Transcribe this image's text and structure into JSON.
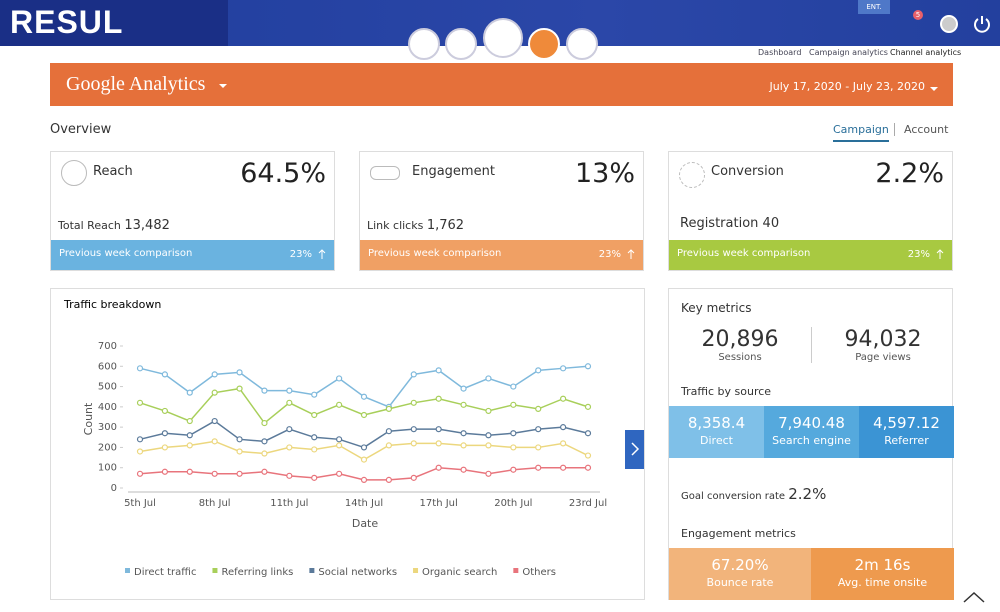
{
  "header": {
    "logo": "RESUL",
    "badge": "ENT.",
    "notifications": "5"
  },
  "breadcrumb": [
    "Dashboard",
    "Campaign analytics",
    "Channel analytics"
  ],
  "banner": {
    "brand": "Google Analytics",
    "date_range": "July 17, 2020 - July 23, 2020"
  },
  "overview": {
    "title": "Overview",
    "tabs": [
      "Campaign",
      "Account"
    ]
  },
  "cards": [
    {
      "title": "Reach",
      "value": "64.5%",
      "metric_label": "Total Reach",
      "metric_value": "13,482",
      "comparison": "Previous week comparison",
      "change": "23%"
    },
    {
      "title": "Engagement",
      "value": "13%",
      "metric_label": "Link clicks",
      "metric_value": "1,762",
      "comparison": "Previous week comparison",
      "change": "23%"
    },
    {
      "title": "Conversion",
      "value": "2.2%",
      "metric_label": "Registration",
      "metric_value": "40",
      "comparison": "Previous week comparison",
      "change": "23%"
    }
  ],
  "chart_data": {
    "type": "line",
    "title": "Traffic breakdown",
    "x_label": "Date",
    "y_label": "Count",
    "categories": [
      "5th Jul",
      null,
      null,
      "8th Jul",
      null,
      null,
      "11th Jul",
      null,
      null,
      "14th Jul",
      null,
      null,
      "17th Jul",
      null,
      null,
      "20th Jul",
      null,
      null,
      "23rd Jul"
    ],
    "ylim": [
      0,
      700
    ],
    "yticks": [
      0,
      100,
      200,
      300,
      400,
      500,
      600,
      700
    ],
    "series": [
      {
        "name": "Direct traffic",
        "color": "#7fb9dc",
        "values": [
          590,
          560,
          470,
          560,
          570,
          480,
          480,
          460,
          540,
          450,
          400,
          560,
          580,
          490,
          540,
          500,
          580,
          590,
          600
        ]
      },
      {
        "name": "Referring links",
        "color": "#a8cf5a",
        "values": [
          420,
          380,
          330,
          470,
          490,
          320,
          420,
          360,
          410,
          360,
          390,
          420,
          440,
          410,
          380,
          410,
          390,
          440,
          400
        ]
      },
      {
        "name": "Social networks",
        "color": "#5b7a9a",
        "values": [
          240,
          270,
          260,
          330,
          240,
          230,
          290,
          250,
          240,
          200,
          280,
          290,
          290,
          270,
          260,
          270,
          290,
          300,
          270
        ]
      },
      {
        "name": "Organic search",
        "color": "#ecd77e",
        "values": [
          180,
          200,
          210,
          230,
          180,
          170,
          200,
          190,
          210,
          140,
          210,
          220,
          220,
          210,
          210,
          200,
          200,
          220,
          160
        ]
      },
      {
        "name": "Others",
        "color": "#e8747c",
        "values": [
          70,
          80,
          80,
          70,
          70,
          80,
          60,
          50,
          70,
          40,
          40,
          50,
          100,
          90,
          70,
          90,
          100,
          100,
          100
        ]
      }
    ]
  },
  "key_metrics": {
    "title": "Key metrics",
    "totals": [
      {
        "value": "20,896",
        "label": "Sessions"
      },
      {
        "value": "94,032",
        "label": "Page views"
      }
    ],
    "traffic_title": "Traffic by source",
    "sources": [
      {
        "value": "8,358.4",
        "label": "Direct"
      },
      {
        "value": "7,940.48",
        "label": "Search engine"
      },
      {
        "value": "4,597.12",
        "label": "Referrer"
      }
    ],
    "goal_label": "Goal conversion rate",
    "goal_value": "2.2%",
    "engagement_title": "Engagement metrics",
    "engagement": [
      {
        "value": "67.20%",
        "label": "Bounce rate"
      },
      {
        "value": "2m 16s",
        "label": "Avg. time onsite"
      }
    ]
  }
}
